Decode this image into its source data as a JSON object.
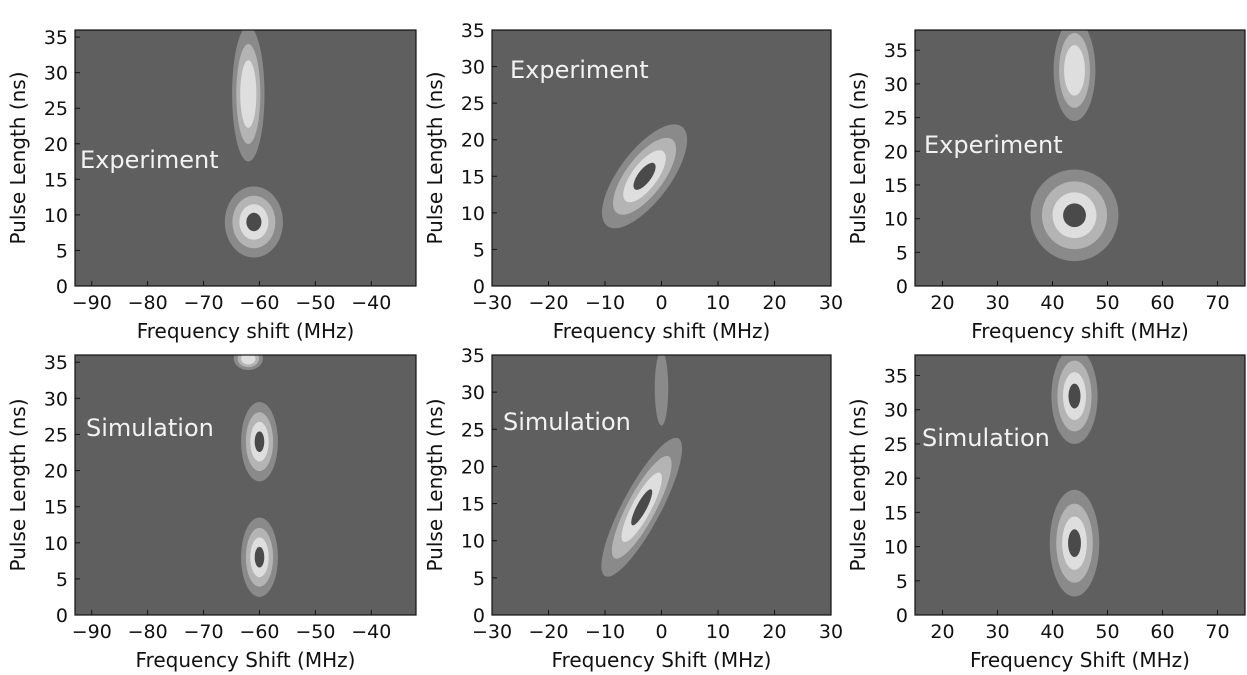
{
  "figure": {
    "colors": {
      "background": "#5f5f5f",
      "level1": "#8a8a8a",
      "level2": "#b4b4b4",
      "level3": "#dedede",
      "level4": "#4a4a4a",
      "axis": "#111111",
      "label_text": "#f2f2f2"
    }
  },
  "chart_data": [
    {
      "type": "contour",
      "label": "Experiment",
      "xlabel": "Frequency shift (MHz)",
      "ylabel": "Pulse Length (ns)",
      "xlim": [
        -93,
        -32
      ],
      "ylim": [
        0,
        36
      ],
      "xticks": [
        -90,
        -80,
        -70,
        -60,
        -50,
        -40
      ],
      "yticks": [
        0,
        5,
        10,
        15,
        20,
        25,
        30,
        35
      ],
      "features": [
        {
          "center": [
            -61,
            9
          ],
          "sx": 5.2,
          "sy": 5.0,
          "levels": 4
        },
        {
          "center": [
            -62,
            27
          ],
          "sx": 2.9,
          "sy": 9.5,
          "levels": 3
        }
      ]
    },
    {
      "type": "contour",
      "label": "Experiment",
      "xlabel": "Frequency shift (MHz)",
      "ylabel": "Pulse Length (ns)",
      "xlim": [
        -30,
        30
      ],
      "ylim": [
        0,
        35
      ],
      "xticks": [
        -30,
        -20,
        -10,
        0,
        10,
        20,
        30
      ],
      "yticks": [
        0,
        5,
        10,
        15,
        20,
        25,
        30,
        35
      ],
      "features": [
        {
          "center": [
            -3,
            15
          ],
          "sx": 4.5,
          "sy": 8.5,
          "rotate": 37,
          "levels": 4
        }
      ]
    },
    {
      "type": "contour",
      "label": "Experiment",
      "xlabel": "Frequency shift (MHz)",
      "ylabel": "Pulse Length (ns)",
      "xlim": [
        15,
        75
      ],
      "ylim": [
        0,
        38
      ],
      "xticks": [
        20,
        30,
        40,
        50,
        60,
        70
      ],
      "yticks": [
        0,
        5,
        10,
        15,
        20,
        25,
        30,
        35
      ],
      "features": [
        {
          "center": [
            44,
            10.5
          ],
          "sx": 8.0,
          "sy": 6.8,
          "levels": 4
        },
        {
          "center": [
            44,
            32
          ],
          "sx": 3.8,
          "sy": 7.5,
          "levels": 3
        }
      ]
    },
    {
      "type": "contour",
      "label": "Simulation",
      "xlabel": "Frequency Shift (MHz)",
      "ylabel": "Pulse Length (ns)",
      "xlim": [
        -93,
        -32
      ],
      "ylim": [
        0,
        36
      ],
      "xticks": [
        -90,
        -80,
        -70,
        -60,
        -50,
        -40
      ],
      "yticks": [
        0,
        5,
        10,
        15,
        20,
        25,
        30,
        35
      ],
      "features": [
        {
          "center": [
            -60,
            8
          ],
          "sx": 3.3,
          "sy": 5.5,
          "levels": 4
        },
        {
          "center": [
            -60,
            24
          ],
          "sx": 3.3,
          "sy": 5.5,
          "levels": 4
        },
        {
          "center": [
            -62,
            35.5
          ],
          "sx": 2.6,
          "sy": 1.6,
          "levels": 3
        }
      ]
    },
    {
      "type": "contour",
      "label": "Simulation",
      "xlabel": "Frequency Shift (MHz)",
      "ylabel": "Pulse Length (ns)",
      "xlim": [
        -30,
        30
      ],
      "ylim": [
        0,
        35
      ],
      "xticks": [
        -30,
        -20,
        -10,
        0,
        10,
        20,
        30
      ],
      "yticks": [
        0,
        5,
        10,
        15,
        20,
        25,
        30,
        35
      ],
      "features": [
        {
          "center": [
            -3.5,
            14.5
          ],
          "sx": 3.4,
          "sy": 10.5,
          "rotate": 28,
          "levels": 4
        },
        {
          "center": [
            0,
            30.5
          ],
          "sx": 1.2,
          "sy": 5.0,
          "levels": 1
        }
      ]
    },
    {
      "type": "contour",
      "label": "Simulation",
      "xlabel": "Frequency Shift (MHz)",
      "ylabel": "Pulse Length (ns)",
      "xlim": [
        15,
        75
      ],
      "ylim": [
        0,
        38
      ],
      "xticks": [
        20,
        30,
        40,
        50,
        60,
        70
      ],
      "yticks": [
        0,
        5,
        10,
        15,
        20,
        25,
        30,
        35
      ],
      "features": [
        {
          "center": [
            44,
            10.5
          ],
          "sx": 4.5,
          "sy": 7.8,
          "levels": 4
        },
        {
          "center": [
            44,
            32
          ],
          "sx": 4.2,
          "sy": 7.0,
          "levels": 4
        }
      ]
    }
  ]
}
